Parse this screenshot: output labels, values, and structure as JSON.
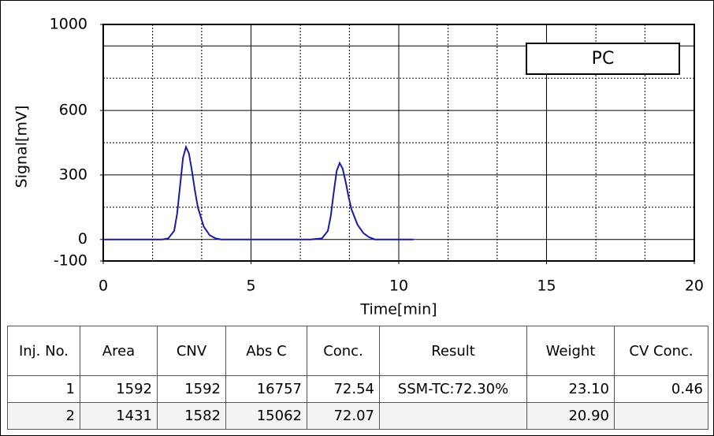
{
  "chart_data": {
    "type": "line",
    "annotation": "PC",
    "xlabel": "Time[min]",
    "ylabel": "Signal[mV]",
    "xlim": [
      0,
      20
    ],
    "xticks": [
      0,
      5,
      10,
      15,
      20
    ],
    "ylim": [
      -100,
      1000
    ],
    "yticks": [
      -100,
      0,
      300,
      600,
      1000
    ],
    "grid_major_x": [
      5,
      10,
      15
    ],
    "grid_minor_x": [
      1.67,
      3.33,
      6.67,
      8.33,
      11.67,
      13.33,
      16.67,
      18.33
    ],
    "grid_major_y": [
      0,
      300,
      600,
      900
    ],
    "grid_minor_y": [
      150,
      450,
      750
    ],
    "x": [
      0,
      1,
      2,
      2.2,
      2.4,
      2.5,
      2.6,
      2.7,
      2.8,
      2.9,
      3.0,
      3.1,
      3.2,
      3.4,
      3.6,
      3.8,
      4.0,
      5,
      6,
      7,
      7.4,
      7.6,
      7.7,
      7.8,
      7.9,
      8.0,
      8.1,
      8.2,
      8.3,
      8.4,
      8.6,
      8.8,
      9.0,
      9.2,
      10,
      10.5
    ],
    "series": [
      {
        "color": "#1a1aa8",
        "values": [
          0,
          0,
          0,
          5,
          40,
          120,
          250,
          380,
          430,
          400,
          320,
          230,
          150,
          60,
          20,
          5,
          0,
          0,
          0,
          0,
          5,
          40,
          110,
          220,
          320,
          355,
          330,
          270,
          200,
          140,
          70,
          30,
          10,
          0,
          0,
          0
        ]
      }
    ]
  },
  "table": {
    "headers": [
      "Inj. No.",
      "Area",
      "CNV",
      "Abs C",
      "Conc.",
      "Result",
      "Weight",
      "CV Conc."
    ],
    "rows": [
      [
        "1",
        "1592",
        "1592",
        "16757",
        "72.54",
        "SSM-TC:72.30%",
        "23.10",
        "0.46"
      ],
      [
        "2",
        "1431",
        "1582",
        "15062",
        "72.07",
        null,
        "20.90",
        null
      ]
    ]
  }
}
